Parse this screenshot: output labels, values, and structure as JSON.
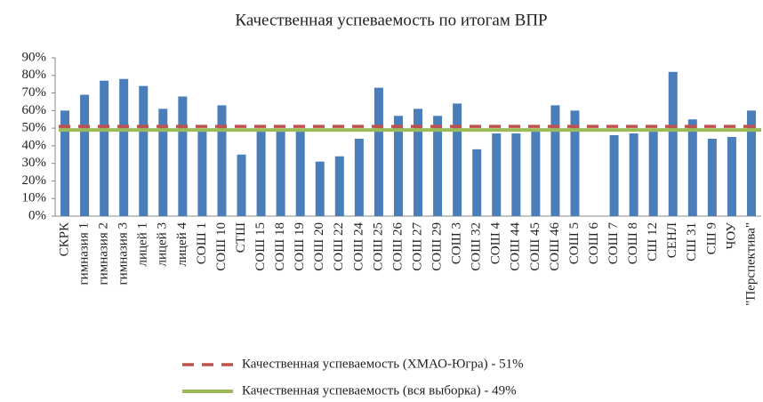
{
  "chart_data": {
    "type": "bar",
    "title": "Качественная успеваемость по итогам ВПР",
    "categories": [
      "СКРК",
      "гимназия 1",
      "гимназия 2",
      "гимназия 3",
      "лицей 1",
      "лицей 3",
      "лицей 4",
      "СОШ 1",
      "СОШ 10",
      "СТШ",
      "СОШ 15",
      "СОШ 18",
      "СОШ 19",
      "СОШ 20",
      "СОШ 22",
      "СОШ 24",
      "СОШ 25",
      "СОШ 26",
      "СОШ 27",
      "СОШ 29",
      "СОШ 3",
      "СОШ 32",
      "СОШ 4",
      "СОШ 44",
      "СОШ 45",
      "СОШ 46",
      "СОШ 5",
      "СОШ 6",
      "СОШ 7",
      "СОШ 8",
      "СШ 12",
      "СЕНЛ",
      "СШ 31",
      "СШ 9",
      "ЧОУ",
      "\"Перспектива\""
    ],
    "values": [
      60,
      69,
      77,
      78,
      74,
      61,
      68,
      48,
      63,
      35,
      48,
      48,
      48,
      31,
      34,
      44,
      73,
      57,
      61,
      57,
      64,
      38,
      47,
      47,
      48,
      63,
      60,
      0,
      46,
      47,
      48,
      82,
      55,
      44,
      45,
      60
    ],
    "color": "#4a7ebb",
    "reference_lines": [
      {
        "name": "Качественная успеваемость (ХМАО-Югра) - 51%",
        "value": 51,
        "color": "#c0504d",
        "dashed": true
      },
      {
        "name": "Качественная успеваемость  (вся выборка) - 49%",
        "value": 49,
        "color": "#9bbb59",
        "dashed": false
      }
    ],
    "ylim": [
      0,
      90
    ],
    "yticks": [
      {
        "value": 0,
        "label": "0%"
      },
      {
        "value": 10,
        "label": "10%"
      },
      {
        "value": 20,
        "label": "20%"
      },
      {
        "value": 30,
        "label": "30%"
      },
      {
        "value": 40,
        "label": "40%"
      },
      {
        "value": 50,
        "label": "50%"
      },
      {
        "value": 60,
        "label": "60%"
      },
      {
        "value": 70,
        "label": "70%"
      },
      {
        "value": 80,
        "label": "80%"
      },
      {
        "value": 90,
        "label": "90%"
      }
    ]
  }
}
